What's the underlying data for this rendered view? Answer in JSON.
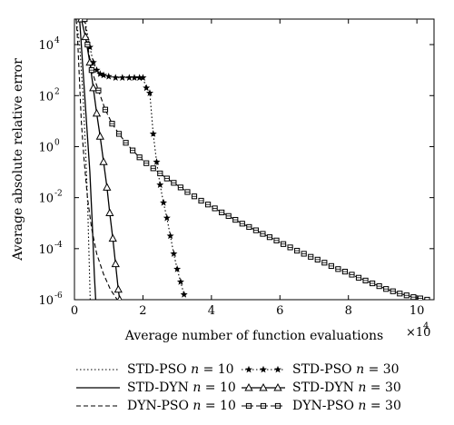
{
  "chart_data": {
    "type": "line",
    "xlabel": "Average number of function evaluations",
    "ylabel": "Average absolute relative error",
    "x_multiplier_label": "×10",
    "x_multiplier_exp": "4",
    "x_ticks": [
      0,
      2,
      4,
      6,
      8,
      10
    ],
    "y_tick_exponents": [
      4,
      2,
      0,
      -2,
      -4,
      -6
    ],
    "y_tick_base": "10",
    "xlim": [
      0,
      10.5
    ],
    "ylim_log10": [
      -6,
      5
    ],
    "y_scale": "log",
    "grid": false,
    "legend_position": "bottom",
    "series": [
      {
        "name": "STD-PSO",
        "n_label": "n",
        "n_value": "= 10",
        "style": "dotted",
        "marker": "none",
        "points": [
          [
            0.05,
            5
          ],
          [
            0.15,
            4.0
          ],
          [
            0.25,
            2.0
          ],
          [
            0.32,
            0.0
          ],
          [
            0.38,
            -2.0
          ],
          [
            0.42,
            -4.0
          ],
          [
            0.46,
            -6.0
          ]
        ]
      },
      {
        "name": "STD-DYN",
        "n_label": "n",
        "n_value": "= 30",
        "style": "solid",
        "marker": "triangle",
        "points": [
          [
            0.2,
            5
          ],
          [
            0.32,
            4.3
          ],
          [
            0.45,
            3.3
          ],
          [
            0.55,
            2.3
          ],
          [
            0.65,
            1.3
          ],
          [
            0.75,
            0.4
          ],
          [
            0.85,
            -0.6
          ],
          [
            0.95,
            -1.6
          ],
          [
            1.03,
            -2.6
          ],
          [
            1.12,
            -3.6
          ],
          [
            1.2,
            -4.6
          ],
          [
            1.28,
            -5.6
          ],
          [
            1.32,
            -6.0
          ]
        ]
      },
      {
        "name": "STD-DYN",
        "n_label": "n",
        "n_value": "= 10",
        "style": "solid",
        "marker": "none",
        "points": [
          [
            0.15,
            5
          ],
          [
            0.25,
            3.0
          ],
          [
            0.35,
            1.0
          ],
          [
            0.45,
            -1.0
          ],
          [
            0.52,
            -3.0
          ],
          [
            0.58,
            -5.0
          ],
          [
            0.62,
            -6.0
          ]
        ]
      },
      {
        "name": "STD-PSO",
        "n_label": "n",
        "n_value": "= 30",
        "style": "dotted",
        "marker": "star",
        "points": [
          [
            0.3,
            5
          ],
          [
            0.45,
            3.9
          ],
          [
            0.55,
            3.3
          ],
          [
            0.65,
            3.0
          ],
          [
            0.75,
            2.85
          ],
          [
            0.85,
            2.8
          ],
          [
            1.0,
            2.75
          ],
          [
            1.2,
            2.7
          ],
          [
            1.4,
            2.7
          ],
          [
            1.6,
            2.7
          ],
          [
            1.75,
            2.7
          ],
          [
            1.9,
            2.7
          ],
          [
            2.0,
            2.7
          ],
          [
            2.1,
            2.3
          ],
          [
            2.2,
            2.1
          ],
          [
            2.3,
            0.5
          ],
          [
            2.4,
            -0.6
          ],
          [
            2.5,
            -1.5
          ],
          [
            2.6,
            -2.2
          ],
          [
            2.7,
            -2.8
          ],
          [
            2.8,
            -3.5
          ],
          [
            2.9,
            -4.2
          ],
          [
            3.0,
            -4.8
          ],
          [
            3.1,
            -5.3
          ],
          [
            3.2,
            -5.8
          ]
        ]
      },
      {
        "name": "DYN-PSO",
        "n_label": "n",
        "n_value": "= 10",
        "style": "dashed",
        "marker": "none",
        "points": [
          [
            0.05,
            5
          ],
          [
            0.1,
            4.0
          ],
          [
            0.15,
            2.5
          ],
          [
            0.2,
            1.0
          ],
          [
            0.28,
            -0.5
          ],
          [
            0.38,
            -2.0
          ],
          [
            0.5,
            -3.2
          ],
          [
            0.65,
            -4.2
          ],
          [
            0.85,
            -5.0
          ],
          [
            1.05,
            -5.6
          ],
          [
            1.25,
            -6.0
          ]
        ]
      },
      {
        "name": "DYN-PSO",
        "n_label": "n",
        "n_value": "= 30",
        "style": "dashed",
        "marker": "square",
        "points": [
          [
            0.3,
            5
          ],
          [
            0.38,
            4.0
          ],
          [
            0.5,
            3.0
          ],
          [
            0.7,
            2.2
          ],
          [
            0.9,
            1.45
          ],
          [
            1.1,
            0.9
          ],
          [
            1.3,
            0.5
          ],
          [
            1.5,
            0.15
          ],
          [
            1.7,
            -0.15
          ],
          [
            1.9,
            -0.42
          ],
          [
            2.1,
            -0.65
          ],
          [
            2.3,
            -0.85
          ],
          [
            2.5,
            -1.05
          ],
          [
            2.7,
            -1.25
          ],
          [
            2.9,
            -1.42
          ],
          [
            3.1,
            -1.6
          ],
          [
            3.3,
            -1.78
          ],
          [
            3.5,
            -1.95
          ],
          [
            3.7,
            -2.12
          ],
          [
            3.9,
            -2.27
          ],
          [
            4.1,
            -2.42
          ],
          [
            4.3,
            -2.58
          ],
          [
            4.5,
            -2.72
          ],
          [
            4.7,
            -2.87
          ],
          [
            4.9,
            -3.02
          ],
          [
            5.1,
            -3.15
          ],
          [
            5.3,
            -3.28
          ],
          [
            5.5,
            -3.42
          ],
          [
            5.7,
            -3.55
          ],
          [
            5.9,
            -3.68
          ],
          [
            6.1,
            -3.82
          ],
          [
            6.3,
            -3.95
          ],
          [
            6.5,
            -4.08
          ],
          [
            6.7,
            -4.2
          ],
          [
            6.9,
            -4.32
          ],
          [
            7.1,
            -4.43
          ],
          [
            7.3,
            -4.55
          ],
          [
            7.5,
            -4.68
          ],
          [
            7.7,
            -4.8
          ],
          [
            7.9,
            -4.9
          ],
          [
            8.1,
            -5.02
          ],
          [
            8.3,
            -5.14
          ],
          [
            8.5,
            -5.25
          ],
          [
            8.7,
            -5.36
          ],
          [
            8.9,
            -5.47
          ],
          [
            9.1,
            -5.58
          ],
          [
            9.3,
            -5.67
          ],
          [
            9.5,
            -5.76
          ],
          [
            9.7,
            -5.83
          ],
          [
            9.9,
            -5.9
          ],
          [
            10.1,
            -5.95
          ],
          [
            10.3,
            -6.0
          ]
        ]
      }
    ]
  }
}
